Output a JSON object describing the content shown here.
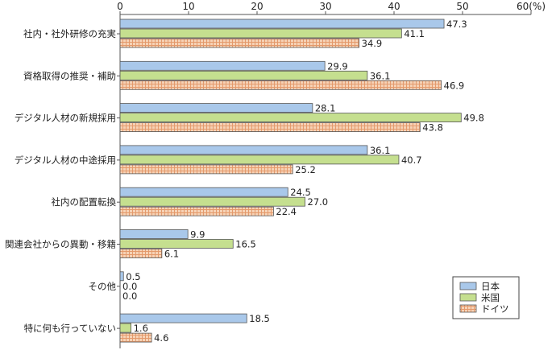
{
  "chart_data": {
    "type": "bar",
    "orientation": "horizontal",
    "categories": [
      "社内・社外研修の充実",
      "資格取得の推奨・補助",
      "デジタル人材の新規採用",
      "デジタル人材の中途採用",
      "社内の配置転換",
      "関連会社からの異動・移籍",
      "その他",
      "特に何も行っていない"
    ],
    "series": [
      {
        "name": "日本",
        "values": [
          47.3,
          29.9,
          28.1,
          36.1,
          24.5,
          9.9,
          0.5,
          18.5
        ],
        "labels": [
          "47.3",
          "29.9",
          "28.1",
          "36.1",
          "24.5",
          "9.9",
          "0.5",
          "18.5"
        ],
        "color": "#a9c8ea",
        "pattern": "solid"
      },
      {
        "name": "米国",
        "values": [
          41.1,
          36.1,
          49.8,
          40.7,
          27.0,
          16.5,
          0.0,
          1.6
        ],
        "labels": [
          "41.1",
          "36.1",
          "49.8",
          "40.7",
          "27.0",
          "16.5",
          "0.0",
          "1.6"
        ],
        "color": "#c5df8f",
        "pattern": "solid"
      },
      {
        "name": "ドイツ",
        "values": [
          34.9,
          46.9,
          43.8,
          25.2,
          22.4,
          6.1,
          0.0,
          4.6
        ],
        "labels": [
          "34.9",
          "46.9",
          "43.8",
          "25.2",
          "22.4",
          "6.1",
          "0.0",
          "4.6"
        ],
        "color": "#f3c3a0",
        "pattern": "grid"
      }
    ],
    "x_ticks": [
      "0",
      "10",
      "20",
      "30",
      "40",
      "50",
      "60(%)"
    ],
    "xlim": [
      0,
      60
    ],
    "grid": false,
    "legend_position": "bottom-right"
  }
}
